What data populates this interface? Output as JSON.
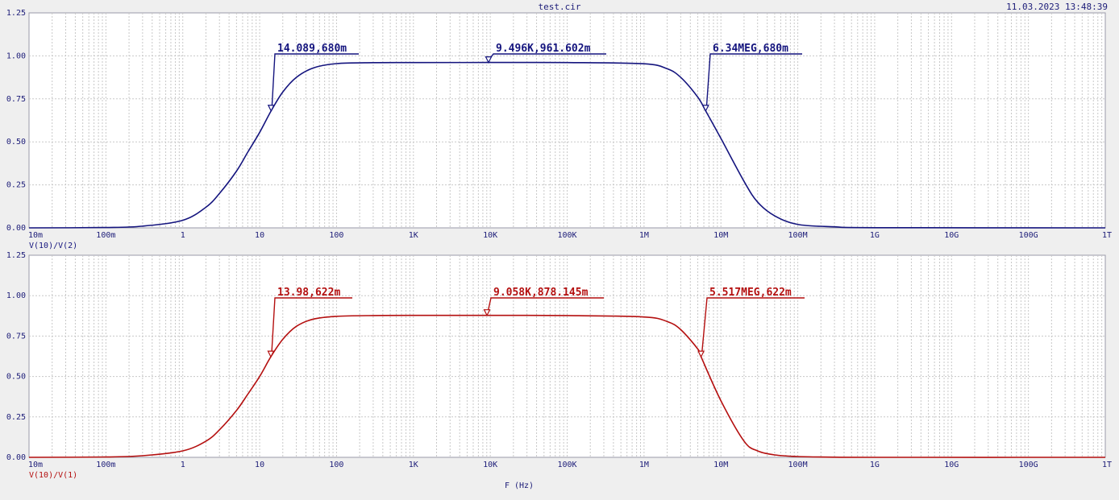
{
  "header": {
    "title": "test.cir",
    "timestamp": "11.03.2023 13:48:39"
  },
  "colors": {
    "background": "#efefef",
    "plot_background": "#ffffff",
    "axis_text": "#1c1c78",
    "grid": "#c8c8c8",
    "trace_top": "#14147e",
    "trace_bottom": "#b40f0f"
  },
  "chart_data": [
    {
      "type": "line",
      "scale_x": "log",
      "grid": true,
      "xlabel": "",
      "ylabel": "",
      "xlim": [
        0.01,
        1000000000000.0
      ],
      "ylim": [
        0,
        1.25
      ],
      "x_ticks": [
        {
          "v": 0.01,
          "label": "10m"
        },
        {
          "v": 0.1,
          "label": "100m"
        },
        {
          "v": 1,
          "label": "1"
        },
        {
          "v": 10,
          "label": "10"
        },
        {
          "v": 100,
          "label": "100"
        },
        {
          "v": 1000,
          "label": "1K"
        },
        {
          "v": 10000,
          "label": "10K"
        },
        {
          "v": 100000,
          "label": "100K"
        },
        {
          "v": 1000000,
          "label": "1M"
        },
        {
          "v": 10000000,
          "label": "10M"
        },
        {
          "v": 100000000,
          "label": "100M"
        },
        {
          "v": 1000000000,
          "label": "1G"
        },
        {
          "v": 10000000000,
          "label": "10G"
        },
        {
          "v": 100000000000,
          "label": "100G"
        },
        {
          "v": 1000000000000,
          "label": "1T"
        }
      ],
      "y_ticks": [
        {
          "v": 0,
          "label": "0.00"
        },
        {
          "v": 0.25,
          "label": "0.25"
        },
        {
          "v": 0.5,
          "label": "0.50"
        },
        {
          "v": 0.75,
          "label": "0.75"
        },
        {
          "v": 1.0,
          "label": "1.00"
        },
        {
          "v": 1.25,
          "label": "1.25"
        }
      ],
      "series": [
        {
          "name": "V(10)/V(2)",
          "color": "#14147e",
          "x": [
            0.01,
            0.1,
            0.3,
            1,
            2,
            3,
            5,
            7,
            10,
            14.089,
            20,
            30,
            50,
            100,
            300,
            1000,
            10000,
            100000,
            1000000,
            2000000,
            3000000,
            5000000,
            6340000,
            10000000,
            20000000,
            30000000,
            50000000,
            100000000,
            300000000,
            1000000000,
            1000000000000
          ],
          "y": [
            0,
            0.002,
            0.01,
            0.044,
            0.12,
            0.2,
            0.33,
            0.44,
            0.555,
            0.68,
            0.79,
            0.875,
            0.93,
            0.955,
            0.9605,
            0.9612,
            0.9616,
            0.9612,
            0.954,
            0.925,
            0.875,
            0.76,
            0.68,
            0.52,
            0.27,
            0.15,
            0.07,
            0.02,
            0.006,
            0.001,
            0
          ]
        }
      ],
      "annotations": [
        {
          "label": "14.089,680m",
          "x": 14.089,
          "y": 0.68
        },
        {
          "label": "9.496K,961.602m",
          "x": 9496,
          "y": 0.961602
        },
        {
          "label": "6.34MEG,680m",
          "x": 6340000,
          "y": 0.68
        }
      ]
    },
    {
      "type": "line",
      "scale_x": "log",
      "grid": true,
      "xlabel": "F (Hz)",
      "ylabel": "",
      "xlim": [
        0.01,
        1000000000000.0
      ],
      "ylim": [
        0,
        1.25
      ],
      "x_ticks": [
        {
          "v": 0.01,
          "label": "10m"
        },
        {
          "v": 0.1,
          "label": "100m"
        },
        {
          "v": 1,
          "label": "1"
        },
        {
          "v": 10,
          "label": "10"
        },
        {
          "v": 100,
          "label": "100"
        },
        {
          "v": 1000,
          "label": "1K"
        },
        {
          "v": 10000,
          "label": "10K"
        },
        {
          "v": 100000,
          "label": "100K"
        },
        {
          "v": 1000000,
          "label": "1M"
        },
        {
          "v": 10000000,
          "label": "10M"
        },
        {
          "v": 100000000,
          "label": "100M"
        },
        {
          "v": 1000000000,
          "label": "1G"
        },
        {
          "v": 10000000000,
          "label": "10G"
        },
        {
          "v": 100000000000,
          "label": "100G"
        },
        {
          "v": 1000000000000,
          "label": "1T"
        }
      ],
      "y_ticks": [
        {
          "v": 0,
          "label": "0.00"
        },
        {
          "v": 0.25,
          "label": "0.25"
        },
        {
          "v": 0.5,
          "label": "0.50"
        },
        {
          "v": 0.75,
          "label": "0.75"
        },
        {
          "v": 1.0,
          "label": "1.00"
        },
        {
          "v": 1.25,
          "label": "1.25"
        }
      ],
      "series": [
        {
          "name": "V(10)/V(1)",
          "color": "#b40f0f",
          "x": [
            0.01,
            0.1,
            0.3,
            1,
            2,
            3,
            5,
            7,
            10,
            13.98,
            20,
            30,
            50,
            100,
            300,
            1000,
            10000,
            100000,
            1000000,
            2000000,
            3000000,
            5000000,
            5517000,
            10000000,
            20000000,
            30000000,
            50000000,
            100000000,
            300000000,
            1000000000,
            1000000000000
          ],
          "y": [
            0,
            0.002,
            0.01,
            0.04,
            0.1,
            0.17,
            0.29,
            0.39,
            0.5,
            0.622,
            0.73,
            0.81,
            0.855,
            0.872,
            0.877,
            0.878,
            0.878,
            0.877,
            0.868,
            0.84,
            0.79,
            0.67,
            0.622,
            0.35,
            0.1,
            0.04,
            0.015,
            0.005,
            0.001,
            0,
            0
          ]
        }
      ],
      "annotations": [
        {
          "label": "13.98,622m",
          "x": 13.98,
          "y": 0.622
        },
        {
          "label": "9.058K,878.145m",
          "x": 9058,
          "y": 0.878145
        },
        {
          "label": "5.517MEG,622m",
          "x": 5517000,
          "y": 0.622
        }
      ]
    }
  ]
}
